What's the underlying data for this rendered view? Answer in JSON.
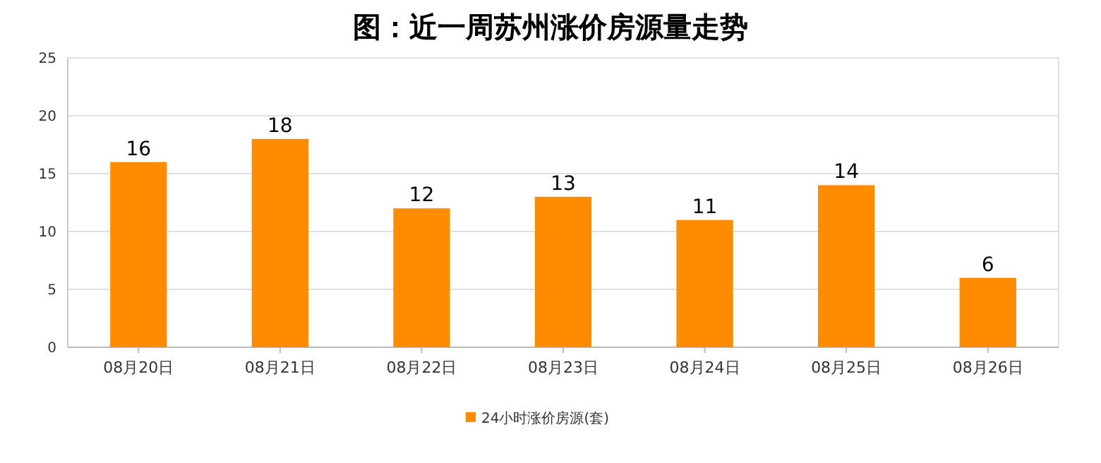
{
  "chart_data": {
    "type": "bar",
    "title": "图：近一周苏州涨价房源量走势",
    "categories": [
      "08月20日",
      "08月21日",
      "08月22日",
      "08月23日",
      "08月24日",
      "08月25日",
      "08月26日"
    ],
    "series": [
      {
        "name": "24小时涨价房源(套)",
        "color": "#ff8c00",
        "values": [
          16,
          18,
          12,
          13,
          11,
          14,
          6
        ]
      }
    ],
    "ylim": [
      0,
      25
    ],
    "yticks": [
      0,
      5,
      10,
      15,
      20,
      25
    ],
    "grid": "y",
    "legend": "bottom",
    "data_labels": true
  }
}
